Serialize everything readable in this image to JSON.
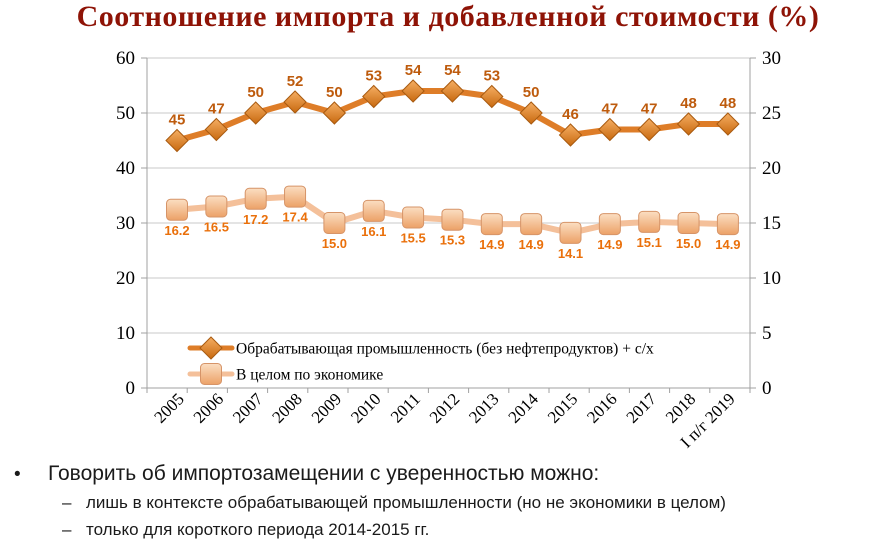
{
  "page": {
    "title": "Соотношение импорта и добавленной стоимости (%)"
  },
  "chart_data": {
    "type": "line",
    "title": "Соотношение импорта и добавленной стоимости (%)",
    "categories": [
      "2005",
      "2006",
      "2007",
      "2008",
      "2009",
      "2010",
      "2011",
      "2012",
      "2013",
      "2014",
      "2015",
      "2016",
      "2017",
      "2018",
      "I п/г 2019"
    ],
    "series": [
      {
        "name": "Обрабатывающая промышленность (без нефтепродуктов) + с/х",
        "axis": "left",
        "marker": "diamond",
        "decimals": 0,
        "values": [
          45,
          47,
          50,
          52,
          50,
          53,
          54,
          54,
          53,
          50,
          46,
          47,
          47,
          48,
          48
        ],
        "color": "#DE7D28",
        "label_color": "#BE5B0D"
      },
      {
        "name": "В целом по экономике",
        "axis": "right",
        "marker": "square",
        "decimals": 1,
        "values": [
          16.2,
          16.5,
          17.2,
          17.4,
          15.0,
          16.1,
          15.5,
          15.3,
          14.9,
          14.9,
          14.1,
          14.9,
          15.1,
          15.0,
          14.9
        ],
        "color": "#F4C09A",
        "label_color": "#EA700B"
      }
    ],
    "axes": {
      "left": {
        "min": 0,
        "max": 60,
        "step": 10,
        "ticks": [
          0,
          10,
          20,
          30,
          40,
          50,
          60
        ]
      },
      "right": {
        "min": 0,
        "max": 30,
        "step": 5,
        "ticks": [
          0,
          5,
          10,
          15,
          20,
          25,
          30
        ]
      }
    },
    "grid": true,
    "legend_position": "bottom-inside"
  },
  "bullets": {
    "marker": "•",
    "dash": "–",
    "title": "Говорить об импортозамещении с уверенностью можно:",
    "items": [
      "лишь в контексте обрабатывающей промышленности (но не экономики в целом)",
      "только для короткого периода 2014-2015 гг."
    ]
  },
  "colors": {
    "title": "#8E1306",
    "grid": "#C9C9C9",
    "axis": "#A0A0A0",
    "series1_line": "#DE7D28",
    "series1_label": "#BE5B0D",
    "series2_line": "#F4C09A",
    "series2_label": "#EA700B"
  }
}
